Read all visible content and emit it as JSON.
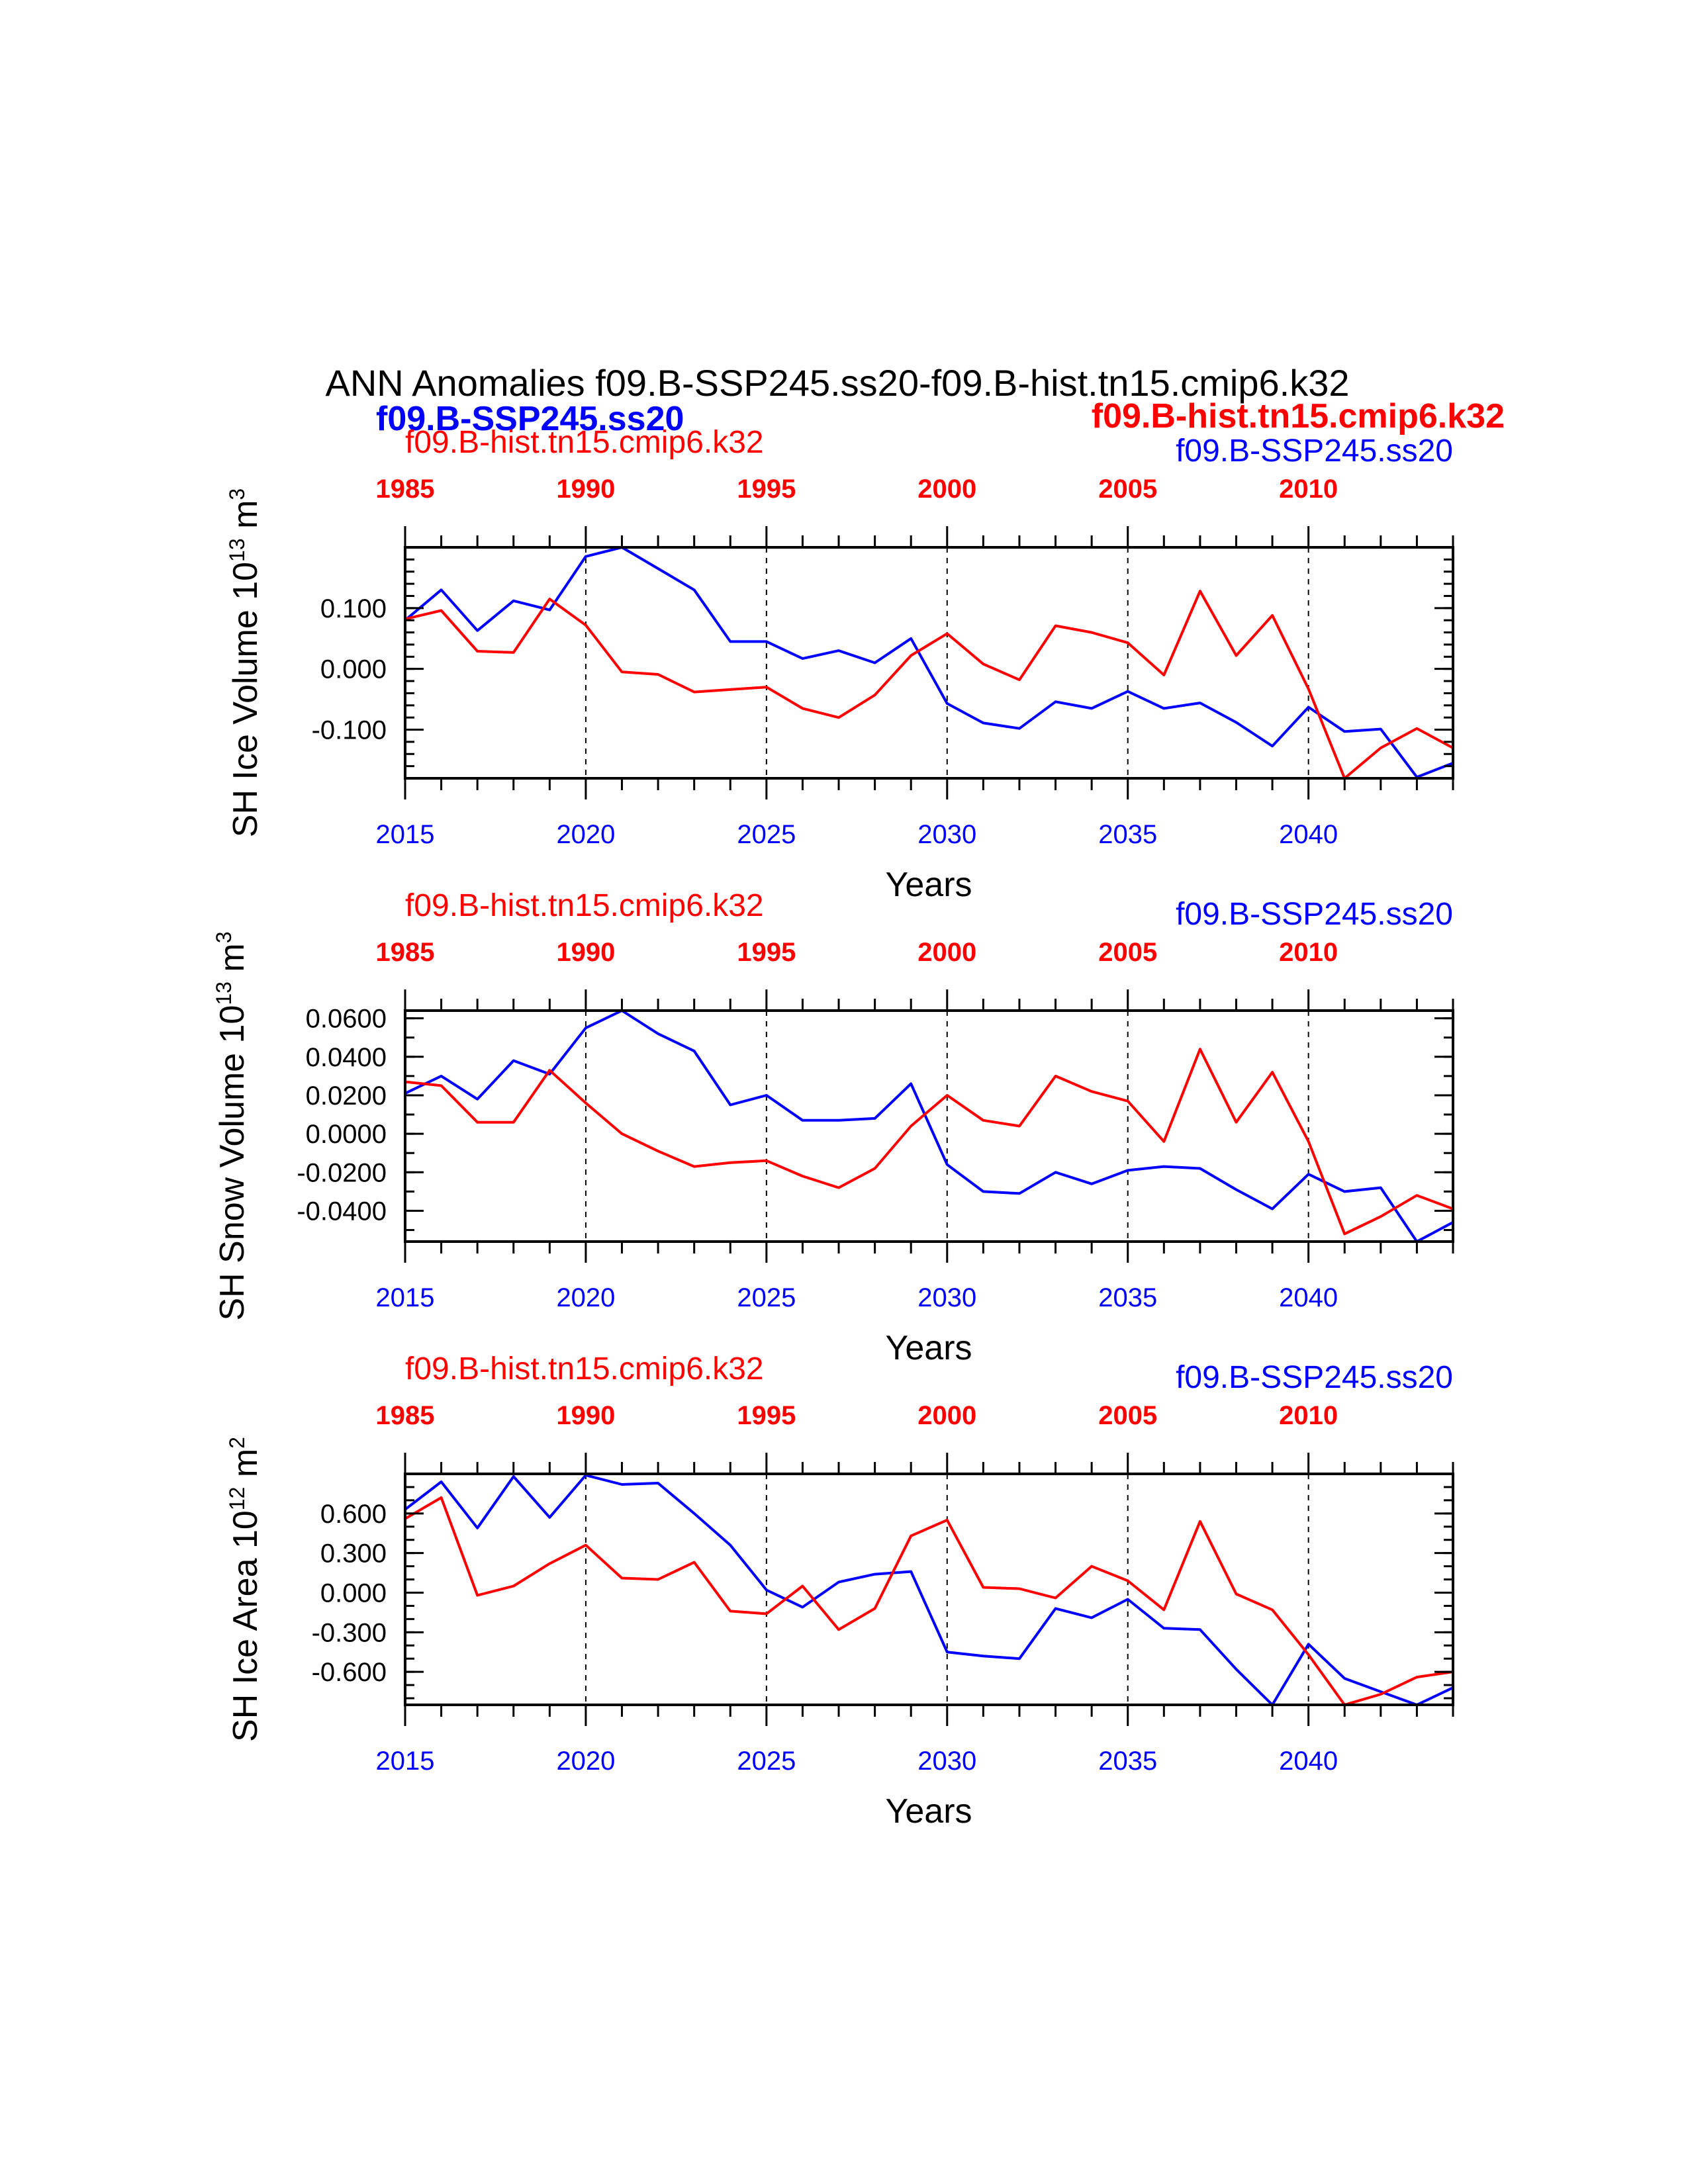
{
  "figure": {
    "title": "ANN Anomalies f09.B-SSP245.ss20-f09.B-hist.tn15.cmip6.k32",
    "legend_blue": "f09.B-SSP245.ss20",
    "legend_red": "f09.B-hist.tn15.cmip6.k32"
  },
  "colors": {
    "ssp": "#0000ff",
    "hist": "#ff0000",
    "axis": "#000000"
  },
  "chart_data": [
    {
      "type": "line",
      "ylabel_main": "SH Ice Volume 10",
      "ylabel_exp": "13",
      "ylabel_unit": " m",
      "ylabel_unit_exp": "3",
      "xlabel": "Years",
      "top_label_red": "f09.B-hist.tn15.cmip6.k32",
      "top_label_blue": "f09.B-SSP245.ss20",
      "xlim": [
        2015,
        2044
      ],
      "ylim": [
        -0.18,
        0.2
      ],
      "yticks": [
        0.1,
        0.0,
        -0.1
      ],
      "ytick_labels": [
        "0.100",
        "0.000",
        "-0.100"
      ],
      "yminor": [
        -0.18,
        -0.16,
        -0.14,
        -0.12,
        -0.1,
        -0.08,
        -0.06,
        -0.04,
        -0.02,
        0.0,
        0.02,
        0.04,
        0.06,
        0.08,
        0.1,
        0.12,
        0.14,
        0.16,
        0.18,
        0.2
      ],
      "bottom_ticks": [
        2015,
        2020,
        2025,
        2030,
        2035,
        2040
      ],
      "top_ticks": [
        "1985",
        "1990",
        "1995",
        "2000",
        "2005",
        "2010"
      ],
      "series": [
        {
          "name": "f09.B-SSP245.ss20",
          "color": "#0000ff",
          "x_start": 2015,
          "values": [
            0.08,
            0.13,
            0.063,
            0.112,
            0.097,
            0.185,
            0.2,
            0.165,
            0.13,
            0.045,
            0.045,
            0.017,
            0.03,
            0.01,
            0.05,
            -0.057,
            -0.089,
            -0.098,
            -0.054,
            -0.065,
            -0.037,
            -0.065,
            -0.056,
            -0.088,
            -0.127,
            -0.063,
            -0.103,
            -0.099,
            -0.178,
            -0.155
          ]
        },
        {
          "name": "f09.B-hist.tn15.cmip6.k32",
          "color": "#ff0000",
          "x_start": 2015,
          "values": [
            0.082,
            0.096,
            0.029,
            0.027,
            0.115,
            0.072,
            -0.005,
            -0.009,
            -0.038,
            -0.034,
            -0.03,
            -0.065,
            -0.08,
            -0.043,
            0.022,
            0.058,
            0.008,
            -0.018,
            0.071,
            0.06,
            0.043,
            -0.01,
            0.128,
            0.022,
            0.088,
            -0.033,
            -0.18,
            -0.13,
            -0.098,
            -0.13
          ]
        }
      ]
    },
    {
      "type": "line",
      "ylabel_main": "SH Snow Volume 10",
      "ylabel_exp": "13",
      "ylabel_unit": " m",
      "ylabel_unit_exp": "3",
      "xlabel": "Years",
      "top_label_red": "f09.B-hist.tn15.cmip6.k32",
      "top_label_blue": "f09.B-SSP245.ss20",
      "xlim": [
        2015,
        2044
      ],
      "ylim": [
        -0.056,
        0.064
      ],
      "yticks": [
        0.06,
        0.04,
        0.02,
        0.0,
        -0.02,
        -0.04
      ],
      "ytick_labels": [
        "0.0600",
        "0.0400",
        "0.0200",
        "0.0000",
        "-0.0200",
        "-0.0400"
      ],
      "yminor": [
        -0.05,
        -0.04,
        -0.03,
        -0.02,
        -0.01,
        0.0,
        0.01,
        0.02,
        0.03,
        0.04,
        0.05,
        0.06
      ],
      "bottom_ticks": [
        2015,
        2020,
        2025,
        2030,
        2035,
        2040
      ],
      "top_ticks": [
        "1985",
        "1990",
        "1995",
        "2000",
        "2005",
        "2010"
      ],
      "series": [
        {
          "name": "f09.B-SSP245.ss20",
          "color": "#0000ff",
          "x_start": 2015,
          "values": [
            0.021,
            0.03,
            0.018,
            0.038,
            0.031,
            0.055,
            0.064,
            0.052,
            0.043,
            0.015,
            0.02,
            0.007,
            0.007,
            0.008,
            0.026,
            -0.016,
            -0.03,
            -0.031,
            -0.02,
            -0.026,
            -0.019,
            -0.017,
            -0.018,
            -0.029,
            -0.039,
            -0.021,
            -0.03,
            -0.028,
            -0.056,
            -0.046
          ]
        },
        {
          "name": "f09.B-hist.tn15.cmip6.k32",
          "color": "#ff0000",
          "x_start": 2015,
          "values": [
            0.027,
            0.025,
            0.006,
            0.006,
            0.033,
            0.016,
            0.0,
            -0.009,
            -0.017,
            -0.015,
            -0.014,
            -0.022,
            -0.028,
            -0.018,
            0.004,
            0.02,
            0.007,
            0.004,
            0.03,
            0.022,
            0.017,
            -0.004,
            0.044,
            0.006,
            0.032,
            -0.004,
            -0.052,
            -0.043,
            -0.032,
            -0.039
          ]
        }
      ]
    },
    {
      "type": "line",
      "ylabel_main": "SH Ice Area 10",
      "ylabel_exp": "12",
      "ylabel_unit": " m",
      "ylabel_unit_exp": "2",
      "xlabel": "Years",
      "top_label_red": "f09.B-hist.tn15.cmip6.k32",
      "top_label_blue": "f09.B-SSP245.ss20",
      "xlim": [
        2015,
        2044
      ],
      "ylim": [
        -0.85,
        0.9
      ],
      "yticks": [
        0.6,
        0.3,
        0.0,
        -0.3,
        -0.6
      ],
      "ytick_labels": [
        "0.600",
        "0.300",
        "0.000",
        "-0.300",
        "-0.600"
      ],
      "yminor": [
        -0.8,
        -0.7,
        -0.6,
        -0.5,
        -0.4,
        -0.3,
        -0.2,
        -0.1,
        0.0,
        0.1,
        0.2,
        0.3,
        0.4,
        0.5,
        0.6,
        0.7,
        0.8,
        0.9
      ],
      "bottom_ticks": [
        2015,
        2020,
        2025,
        2030,
        2035,
        2040
      ],
      "top_ticks": [
        "1985",
        "1990",
        "1995",
        "2000",
        "2005",
        "2010"
      ],
      "series": [
        {
          "name": "f09.B-SSP245.ss20",
          "color": "#0000ff",
          "x_start": 2015,
          "values": [
            0.63,
            0.84,
            0.49,
            0.88,
            0.57,
            0.89,
            0.82,
            0.83,
            0.6,
            0.36,
            0.02,
            -0.11,
            0.08,
            0.14,
            0.16,
            -0.45,
            -0.48,
            -0.5,
            -0.12,
            -0.19,
            -0.05,
            -0.27,
            -0.28,
            -0.58,
            -0.85,
            -0.39,
            -0.65,
            -0.75,
            -0.85,
            -0.72
          ]
        },
        {
          "name": "f09.B-hist.tn15.cmip6.k32",
          "color": "#ff0000",
          "x_start": 2015,
          "values": [
            0.56,
            0.72,
            -0.02,
            0.05,
            0.22,
            0.36,
            0.11,
            0.1,
            0.23,
            -0.14,
            -0.16,
            0.05,
            -0.28,
            -0.12,
            0.43,
            0.55,
            0.04,
            0.03,
            -0.04,
            0.2,
            0.09,
            -0.13,
            0.54,
            -0.01,
            -0.13,
            -0.47,
            -0.85,
            -0.77,
            -0.64,
            -0.6
          ]
        }
      ]
    }
  ]
}
